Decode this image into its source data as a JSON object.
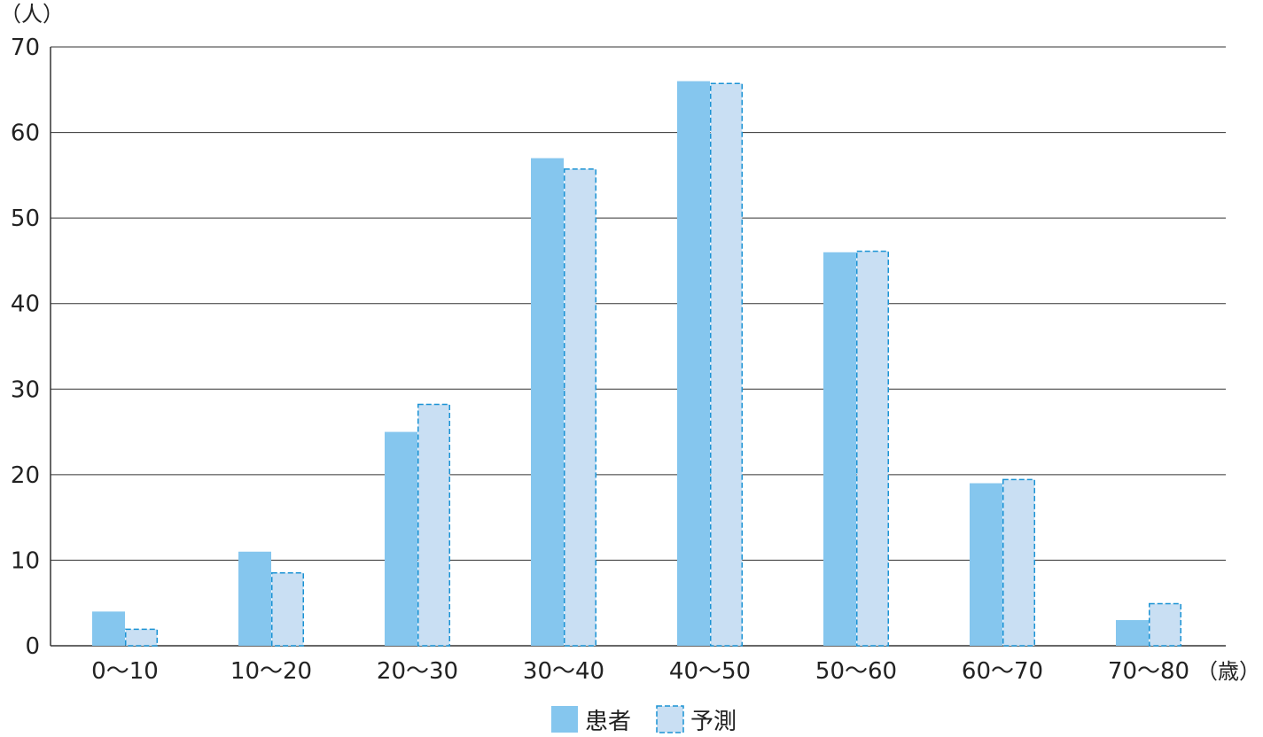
{
  "chart_data": {
    "type": "bar",
    "categories": [
      "0〜10",
      "10〜20",
      "20〜30",
      "30〜40",
      "40〜50",
      "50〜60",
      "60〜70",
      "70〜80"
    ],
    "series": [
      {
        "name": "患者",
        "values": [
          4,
          11,
          25,
          57,
          66,
          46,
          19,
          3
        ],
        "color": "#85c6ee",
        "style": "solid"
      },
      {
        "name": "予測",
        "values": [
          2,
          8.6,
          28.3,
          55.8,
          65.8,
          46.2,
          19.5,
          5
        ],
        "color": "#c9dff3",
        "border_color": "#1b93d4",
        "style": "dashed"
      }
    ],
    "y_unit": "（人）",
    "x_unit": "（歳）",
    "ylim": [
      0,
      70
    ],
    "yticks": [
      0,
      10,
      20,
      30,
      40,
      50,
      60,
      70
    ],
    "grid": true,
    "legend_position": "bottom-center"
  }
}
